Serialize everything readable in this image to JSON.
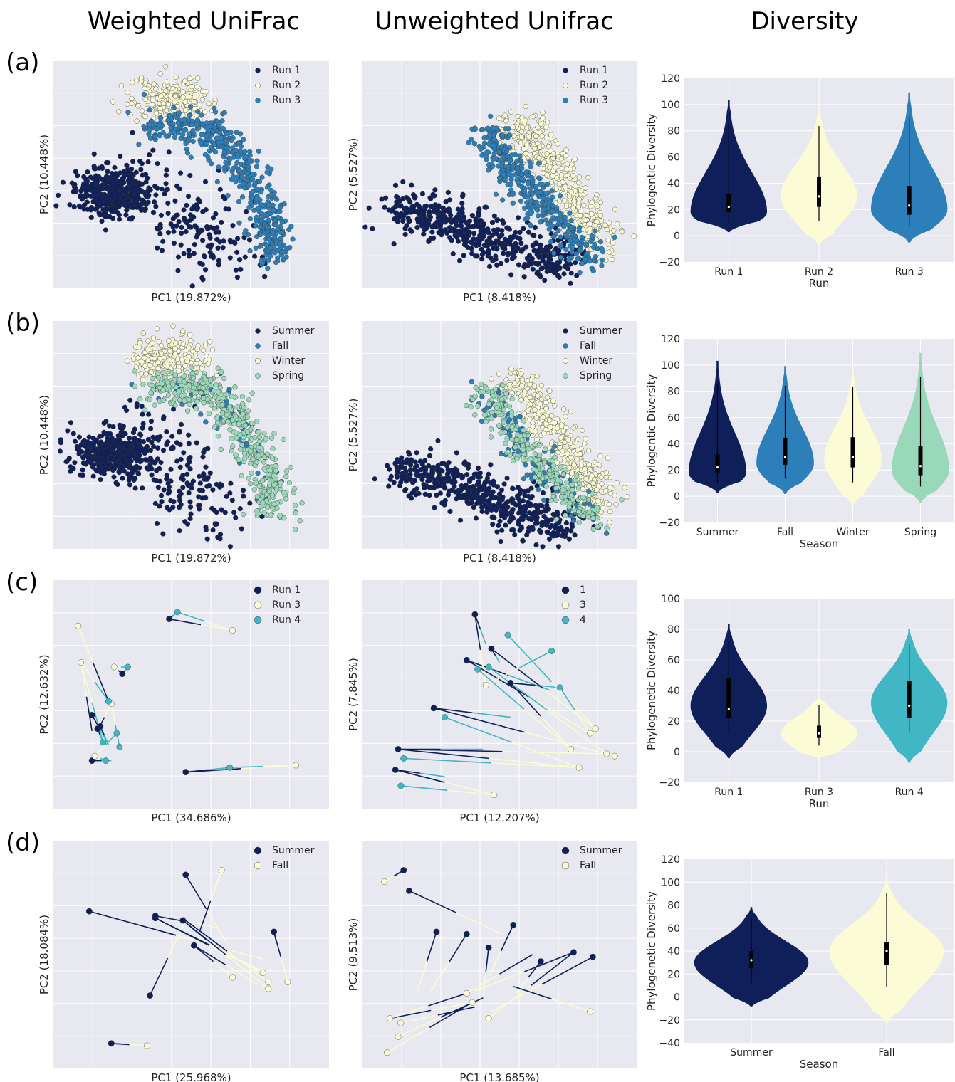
{
  "headers": {
    "col1": "Weighted UniFrac",
    "col2": "Unweighted Unifrac",
    "col3": "Diversity"
  },
  "row_labels": [
    "(a)",
    "(b)",
    "(c)",
    "(d)"
  ],
  "colors": {
    "navy": "#0f1f5a",
    "cream": "#fbfbd6",
    "blue": "#2c7fb8",
    "teal": "#41b6c4",
    "mint": "#99d8b9",
    "plot_bg": "#e8e8f0"
  },
  "chart_data": [
    {
      "id": "a1",
      "type": "scatter",
      "xlabel": "PC1 (19.872%)",
      "ylabel": "PC2 (10.448%)",
      "legend": [
        {
          "name": "Run 1",
          "color": "#0f1f5a"
        },
        {
          "name": "Run 2",
          "color": "#fbfbd6"
        },
        {
          "name": "Run 3",
          "color": "#2c7fb8"
        }
      ]
    },
    {
      "id": "a2",
      "type": "scatter",
      "xlabel": "PC1 (8.418%)",
      "ylabel": "PC2 (5.527%)",
      "legend": [
        {
          "name": "Run 1",
          "color": "#0f1f5a"
        },
        {
          "name": "Run 2",
          "color": "#fbfbd6"
        },
        {
          "name": "Run 3",
          "color": "#2c7fb8"
        }
      ]
    },
    {
      "id": "a3",
      "type": "violin",
      "xlabel": "Run",
      "ylabel": "Phylogentic Diversity",
      "ylim": [
        -20,
        120
      ],
      "yticks": [
        -20,
        0,
        20,
        40,
        60,
        80,
        100,
        120
      ],
      "categories": [
        "Run 1",
        "Run 2",
        "Run 3"
      ],
      "violins": [
        {
          "color": "#0f1f5a",
          "min": 3,
          "max": 103,
          "q1": 18,
          "median": 22,
          "q3": 32,
          "mode": 18
        },
        {
          "color": "#fbfbd6",
          "min": -7,
          "max": 97,
          "q1": 22,
          "median": 30,
          "q3": 45,
          "mode": 30
        },
        {
          "color": "#2c7fb8",
          "min": -5,
          "max": 109,
          "q1": 16,
          "median": 23,
          "q3": 38,
          "mode": 20
        }
      ]
    },
    {
      "id": "b1",
      "type": "scatter",
      "xlabel": "PC1 (19.872%)",
      "ylabel": "PC2 (10.448%)",
      "legend": [
        {
          "name": "Summer",
          "color": "#0f1f5a"
        },
        {
          "name": "Fall",
          "color": "#2c7fb8"
        },
        {
          "name": "Winter",
          "color": "#fbfbd6"
        },
        {
          "name": "Spring",
          "color": "#99d8b9"
        }
      ]
    },
    {
      "id": "b2",
      "type": "scatter",
      "xlabel": "PC1 (8.418%)",
      "ylabel": "PC2 (5.527%)",
      "legend": [
        {
          "name": "Summer",
          "color": "#0f1f5a"
        },
        {
          "name": "Fall",
          "color": "#2c7fb8"
        },
        {
          "name": "Winter",
          "color": "#fbfbd6"
        },
        {
          "name": "Spring",
          "color": "#99d8b9"
        }
      ]
    },
    {
      "id": "b3",
      "type": "violin",
      "xlabel": "Season",
      "ylabel": "Phylogentic Diversity",
      "ylim": [
        -20,
        120
      ],
      "yticks": [
        -20,
        0,
        20,
        40,
        60,
        80,
        100,
        120
      ],
      "categories": [
        "Summer",
        "Fall",
        "Winter",
        "Spring"
      ],
      "violins": [
        {
          "color": "#0f1f5a",
          "min": 3,
          "max": 103,
          "q1": 18,
          "median": 22,
          "q3": 32,
          "mode": 18
        },
        {
          "color": "#2c7fb8",
          "min": 2,
          "max": 99,
          "q1": 24,
          "median": 30,
          "q3": 44,
          "mode": 25
        },
        {
          "color": "#fbfbd6",
          "min": -7,
          "max": 97,
          "q1": 22,
          "median": 30,
          "q3": 45,
          "mode": 28
        },
        {
          "color": "#99d8b9",
          "min": -5,
          "max": 109,
          "q1": 16,
          "median": 23,
          "q3": 38,
          "mode": 20
        }
      ]
    },
    {
      "id": "c1",
      "type": "scatter",
      "xlabel": "PC1 (34.686%)",
      "ylabel": "PC2 (12.632%)",
      "legend": [
        {
          "name": "Run 1",
          "color": "#0f1f5a"
        },
        {
          "name": "Run 3",
          "color": "#fbfbd6"
        },
        {
          "name": "Run 4",
          "color": "#41b6c4"
        }
      ]
    },
    {
      "id": "c2",
      "type": "scatter",
      "xlabel": "PC1 (12.207%)",
      "ylabel": "PC2 (7.845%)",
      "legend": [
        {
          "name": "1",
          "color": "#0f1f5a"
        },
        {
          "name": "3",
          "color": "#fbfbd6"
        },
        {
          "name": "4",
          "color": "#41b6c4"
        }
      ]
    },
    {
      "id": "c3",
      "type": "violin",
      "xlabel": "Run",
      "ylabel": "Phylogenetic Diversity",
      "ylim": [
        -20,
        100
      ],
      "yticks": [
        -20,
        0,
        20,
        40,
        60,
        80,
        100
      ],
      "categories": [
        "Run 1",
        "Run 3",
        "Run 4"
      ],
      "violins": [
        {
          "color": "#0f1f5a",
          "min": -4,
          "max": 83,
          "q1": 22,
          "median": 28,
          "q3": 48,
          "mode": 30
        },
        {
          "color": "#fbfbd6",
          "min": -4,
          "max": 35,
          "q1": 9,
          "median": 12,
          "q3": 17,
          "mode": 12
        },
        {
          "color": "#41b6c4",
          "min": -7,
          "max": 80,
          "q1": 22,
          "median": 30,
          "q3": 46,
          "mode": 32
        }
      ]
    },
    {
      "id": "d1",
      "type": "scatter",
      "xlabel": "PC1 (25.968%)",
      "ylabel": "PC2 (18.084%)",
      "legend": [
        {
          "name": "Summer",
          "color": "#0f1f5a"
        },
        {
          "name": "Fall",
          "color": "#fbfbd6"
        }
      ]
    },
    {
      "id": "d2",
      "type": "scatter",
      "xlabel": "PC1 (13.685%)",
      "ylabel": "PC2 (9.513%)",
      "legend": [
        {
          "name": "Summer",
          "color": "#0f1f5a"
        },
        {
          "name": "Fall",
          "color": "#fbfbd6"
        }
      ]
    },
    {
      "id": "d3",
      "type": "violin",
      "xlabel": "Season",
      "ylabel": "Phylogenetic Diversity",
      "ylim": [
        -40,
        120
      ],
      "yticks": [
        -40,
        -20,
        0,
        20,
        40,
        60,
        80,
        100,
        120
      ],
      "categories": [
        "Summer",
        "Fall"
      ],
      "violins": [
        {
          "color": "#0f1f5a",
          "min": -8,
          "max": 78,
          "q1": 25,
          "median": 32,
          "q3": 40,
          "mode": 30
        },
        {
          "color": "#fbfbd6",
          "min": -22,
          "max": 103,
          "q1": 28,
          "median": 40,
          "q3": 48,
          "mode": 40
        }
      ]
    }
  ]
}
